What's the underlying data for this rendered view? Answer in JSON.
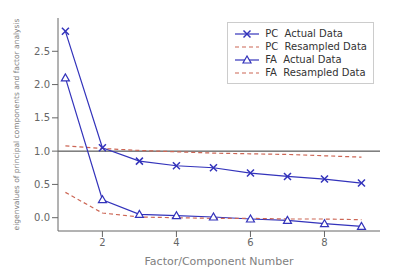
{
  "chart_data": {
    "type": "line",
    "xlabel": "Factor/Component Number",
    "ylabel": "eigenvalues of principal components and factor analysis",
    "series": [
      {
        "name": "PC  Actual Data",
        "color": "#3333bb",
        "marker": "x",
        "line_style": "solid",
        "x": [
          1,
          2,
          3,
          4,
          5,
          6,
          7,
          8,
          9
        ],
        "values": [
          2.8,
          1.05,
          0.85,
          0.78,
          0.75,
          0.67,
          0.62,
          0.58,
          0.52
        ]
      },
      {
        "name": "PC  Resampled Data",
        "color": "#cc6655",
        "marker": "none",
        "line_style": "dashed",
        "x": [
          1,
          2,
          3,
          4,
          5,
          6,
          7,
          8,
          9
        ],
        "values": [
          1.08,
          1.04,
          1.01,
          0.99,
          0.97,
          0.96,
          0.95,
          0.93,
          0.91
        ]
      },
      {
        "name": "FA  Actual Data",
        "color": "#3333bb",
        "marker": "triangle",
        "line_style": "solid",
        "x": [
          1,
          2,
          3,
          4,
          5,
          6,
          7,
          8,
          9
        ],
        "values": [
          2.1,
          0.27,
          0.05,
          0.03,
          0.01,
          -0.02,
          -0.04,
          -0.09,
          -0.13
        ]
      },
      {
        "name": "FA  Resampled Data",
        "color": "#cc6655",
        "marker": "none",
        "line_style": "dashed",
        "x": [
          1,
          2,
          3,
          4,
          5,
          6,
          7,
          8,
          9
        ],
        "values": [
          0.38,
          0.07,
          0.01,
          0.0,
          -0.01,
          -0.01,
          -0.02,
          -0.02,
          -0.03
        ]
      }
    ],
    "hline_y": 1.0,
    "xlim": [
      0.8,
      9.5
    ],
    "ylim": [
      -0.2,
      3.0
    ],
    "xticks": [
      2,
      4,
      6,
      8
    ],
    "yticks": [
      {
        "value": 0,
        "label": "0.0"
      },
      0.5,
      {
        "value": 1,
        "label": "1.0"
      },
      1.5,
      {
        "value": 2,
        "label": "2.0"
      },
      2.5
    ],
    "grid": false,
    "legend": "upper right"
  }
}
